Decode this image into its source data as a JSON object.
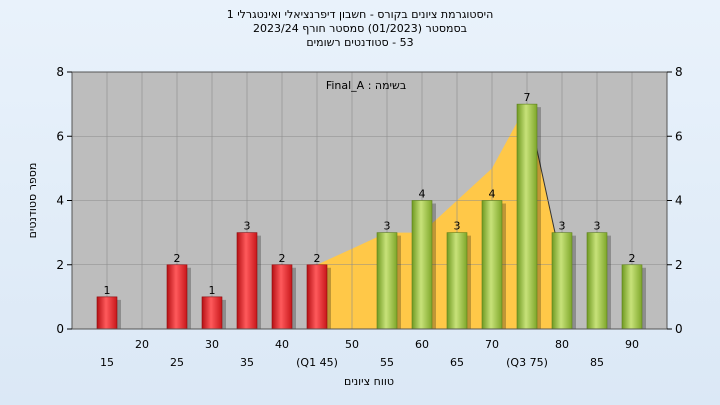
{
  "title_lines": [
    "היסטוגרמת ציונים בקורס - חשבון דיפרנציאלי ואינטגרלי 1",
    "בסמסטר  (01/2023)  סמסטר חורף 2023/24",
    "53 - סטודנטים רשומים"
  ],
  "chart_data": {
    "type": "bar",
    "annotation": "בשימה : Final_A",
    "ylabel": "מספר סטודנטים",
    "xlabel": "טווח ציונים",
    "ylim": [
      0,
      8
    ],
    "y_ticks": [
      0,
      2,
      4,
      6,
      8
    ],
    "grid": true,
    "x_tick_labels": [
      {
        "x": 15,
        "label": "15",
        "row": "low"
      },
      {
        "x": 20,
        "label": "20",
        "row": "high"
      },
      {
        "x": 25,
        "label": "25",
        "row": "low"
      },
      {
        "x": 30,
        "label": "30",
        "row": "high"
      },
      {
        "x": 35,
        "label": "35",
        "row": "low"
      },
      {
        "x": 40,
        "label": "40",
        "row": "high"
      },
      {
        "x": 45,
        "label": "(Q1 45)",
        "row": "low"
      },
      {
        "x": 50,
        "label": "50",
        "row": "high"
      },
      {
        "x": 55,
        "label": "55",
        "row": "low"
      },
      {
        "x": 60,
        "label": "60",
        "row": "high"
      },
      {
        "x": 65,
        "label": "65",
        "row": "low"
      },
      {
        "x": 70,
        "label": "70",
        "row": "high"
      },
      {
        "x": 75,
        "label": "(Q3 75)",
        "row": "low"
      },
      {
        "x": 80,
        "label": "80",
        "row": "high"
      },
      {
        "x": 85,
        "label": "85",
        "row": "low"
      },
      {
        "x": 90,
        "label": "90",
        "row": "high"
      }
    ],
    "bars": [
      {
        "x": 15,
        "value": 1,
        "color": "red"
      },
      {
        "x": 25,
        "value": 2,
        "color": "red"
      },
      {
        "x": 30,
        "value": 1,
        "color": "red"
      },
      {
        "x": 35,
        "value": 3,
        "color": "red"
      },
      {
        "x": 40,
        "value": 2,
        "color": "red"
      },
      {
        "x": 45,
        "value": 2,
        "color": "red"
      },
      {
        "x": 55,
        "value": 3,
        "color": "green"
      },
      {
        "x": 60,
        "value": 4,
        "color": "green"
      },
      {
        "x": 65,
        "value": 3,
        "color": "green"
      },
      {
        "x": 70,
        "value": 4,
        "color": "green"
      },
      {
        "x": 75,
        "value": 7,
        "color": "green"
      },
      {
        "x": 80,
        "value": 3,
        "color": "green"
      },
      {
        "x": 85,
        "value": 3,
        "color": "green"
      },
      {
        "x": 90,
        "value": 2,
        "color": "green"
      }
    ],
    "area_values": [
      {
        "x": 45,
        "y": 2
      },
      {
        "x": 50,
        "y": 2.5
      },
      {
        "x": 55,
        "y": 3
      },
      {
        "x": 60,
        "y": 3
      },
      {
        "x": 65,
        "y": 4
      },
      {
        "x": 70,
        "y": 5
      },
      {
        "x": 75,
        "y": 7
      },
      {
        "x": 80,
        "y": 2
      }
    ],
    "colors": {
      "plot_bg": "#bdbdbd",
      "area": "#ffc848",
      "red_bar": "#e8262a",
      "green_bar": "#9cc33a",
      "grid": "#8c8c8c"
    }
  }
}
